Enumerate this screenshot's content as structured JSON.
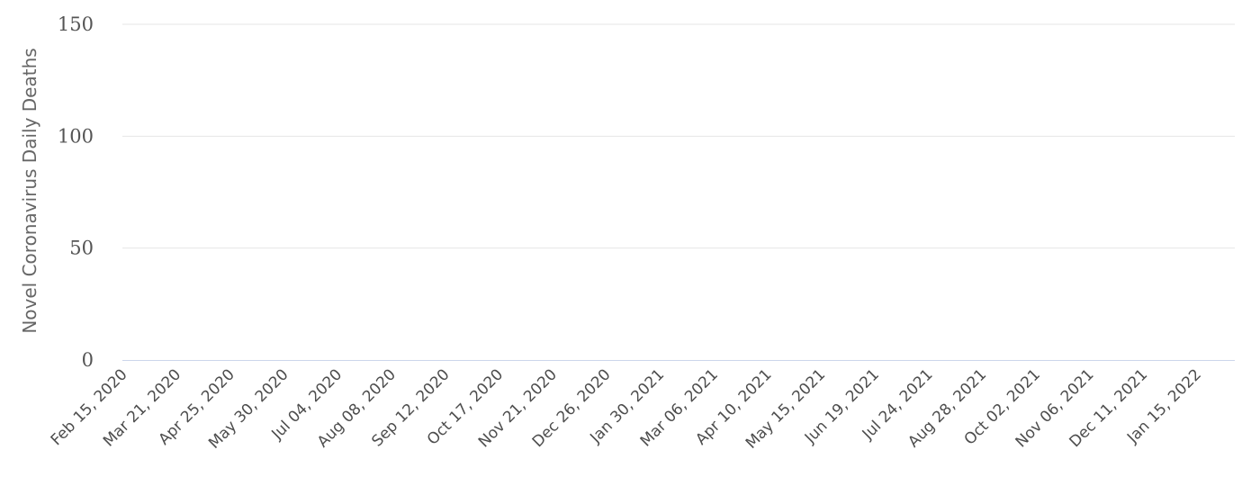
{
  "chart_data": {
    "type": "bar",
    "ylabel": "Novel Coronavirus Daily Deaths",
    "ylim": [
      0,
      150
    ],
    "y_ticks": [
      "0",
      "50",
      "100",
      "150"
    ],
    "grid": true,
    "bar_color": "#999999",
    "grid_color": "#e6e6e6",
    "axis_color": "#ccd6eb",
    "x_start": "2020-02-15",
    "x_end": "2022-02-08",
    "x_ticks": [
      "Feb 15, 2020",
      "Mar 21, 2020",
      "Apr 25, 2020",
      "May 30, 2020",
      "Jul 04, 2020",
      "Aug 08, 2020",
      "Sep 12, 2020",
      "Oct 17, 2020",
      "Nov 21, 2020",
      "Dec 26, 2020",
      "Jan 30, 2021",
      "Mar 06, 2021",
      "Apr 10, 2021",
      "May 15, 2021",
      "Jun 19, 2021",
      "Jul 24, 2021",
      "Aug 28, 2021",
      "Oct 02, 2021",
      "Nov 06, 2021",
      "Dec 11, 2021",
      "Jan 15, 2022"
    ],
    "series": [
      {
        "values": [
          0,
          0,
          0,
          0,
          0,
          0,
          0,
          0,
          0,
          0,
          0,
          0,
          0,
          0,
          0,
          0,
          0,
          0,
          0,
          0,
          0,
          0,
          0,
          0,
          0,
          0,
          0,
          0,
          0,
          0,
          0,
          0,
          0,
          0,
          0,
          0,
          0,
          0,
          0,
          0,
          0,
          0,
          0,
          0,
          0,
          0,
          0,
          0,
          0,
          0,
          0,
          0,
          0,
          0,
          0,
          0,
          0,
          0,
          0,
          0,
          0,
          0,
          0,
          0,
          0,
          0,
          0,
          0,
          0,
          0,
          0,
          0,
          0,
          0,
          0,
          0,
          0,
          0,
          0,
          0,
          0,
          0,
          0,
          0,
          0,
          0,
          0,
          0,
          0,
          0,
          0,
          0,
          0,
          0,
          0,
          0,
          0,
          0,
          0,
          0,
          0,
          0,
          0,
          0,
          0,
          0,
          0,
          0,
          0,
          0,
          0,
          0,
          0,
          0,
          0,
          0,
          0,
          0,
          0,
          0,
          0,
          0,
          0,
          0,
          0,
          0,
          0,
          0,
          0,
          0,
          0,
          0,
          0,
          0,
          0,
          0,
          0,
          0,
          0,
          0,
          0,
          0,
          0,
          0,
          0,
          0,
          0,
          0,
          0,
          0,
          0,
          0,
          0,
          0,
          0,
          0,
          0,
          0,
          0,
          0,
          0,
          0,
          0,
          0,
          0,
          0,
          0,
          0,
          0,
          0,
          0,
          0,
          0,
          0,
          0,
          0,
          0,
          0,
          0,
          0,
          0,
          0,
          0,
          0,
          0,
          0,
          0,
          0,
          0,
          0,
          0,
          0,
          0,
          0,
          0,
          0,
          0,
          0,
          0,
          0,
          0,
          0,
          0,
          0,
          0,
          0,
          0,
          0,
          0,
          0,
          0,
          0,
          0,
          0,
          0,
          0,
          0,
          0,
          0,
          0,
          0,
          0,
          0,
          0,
          0,
          0,
          0,
          0,
          0,
          0,
          0,
          0,
          0,
          0,
          0,
          0,
          0,
          0,
          0,
          0,
          0,
          0,
          0,
          0,
          0,
          0,
          0,
          0,
          0,
          0,
          0,
          0,
          0,
          0,
          0,
          0,
          0,
          0,
          0,
          0,
          0,
          0,
          0,
          0,
          0,
          0,
          0,
          0,
          0,
          0,
          0,
          0,
          0,
          0,
          0,
          0,
          0,
          0,
          0,
          0,
          0,
          0,
          0,
          0,
          0,
          0,
          0,
          0,
          0,
          0,
          0,
          0,
          0,
          0,
          0,
          0,
          0,
          0,
          0,
          0,
          0,
          0,
          0,
          0,
          0,
          0,
          0,
          0,
          0,
          0,
          0,
          0,
          0,
          0,
          0,
          0,
          0,
          0,
          0,
          0,
          0,
          0,
          0,
          0,
          0,
          0,
          0,
          0,
          0,
          0,
          0,
          0,
          0,
          0,
          0,
          0,
          0,
          0,
          0,
          0,
          0,
          0,
          0,
          0,
          0,
          0,
          0,
          0,
          0,
          0,
          0,
          0,
          0,
          0,
          0,
          0,
          0,
          0,
          0,
          0,
          0,
          0,
          0,
          0,
          0,
          0,
          0,
          0,
          0,
          0,
          0,
          0,
          0,
          0,
          0,
          0,
          0,
          0,
          0,
          0,
          0,
          0,
          0,
          0,
          0,
          0,
          0,
          0,
          0,
          0,
          0,
          0,
          0,
          0,
          0,
          0,
          0,
          0,
          0,
          0,
          0,
          0,
          0,
          0,
          0,
          0,
          0,
          0,
          0,
          0,
          0,
          0,
          0,
          0,
          0,
          0,
          0,
          0,
          0,
          0,
          0,
          0,
          0,
          0,
          0,
          0,
          0,
          0,
          0,
          0,
          0,
          0,
          0,
          0,
          0,
          0,
          0,
          0,
          0,
          0,
          0,
          0,
          0,
          0,
          0,
          0,
          0,
          0,
          0,
          0,
          0,
          0,
          0,
          0,
          0,
          0,
          0,
          0,
          0,
          0,
          0,
          0,
          0,
          0,
          0,
          0,
          0,
          0,
          0,
          0,
          0,
          0,
          0,
          0,
          0,
          0,
          0,
          0,
          0,
          0,
          0,
          0,
          0,
          0,
          0,
          0,
          0,
          0,
          0,
          0,
          0,
          0,
          0,
          0,
          0,
          0,
          0,
          0,
          0,
          0,
          0,
          0,
          0,
          0,
          0,
          0,
          0,
          0,
          0,
          0,
          0,
          0,
          0,
          0,
          0,
          0,
          0,
          0,
          0,
          0,
          0,
          0,
          0,
          0,
          0,
          0,
          0,
          0,
          0,
          0,
          0,
          0,
          0,
          0,
          0,
          0,
          0,
          0,
          0,
          0,
          0,
          0,
          0,
          0,
          0,
          0,
          0,
          0,
          0,
          0,
          0,
          0,
          0,
          0,
          0,
          0,
          0,
          0,
          0,
          0,
          0,
          0,
          0,
          0,
          0,
          0,
          0,
          0,
          0,
          0,
          0,
          0,
          0,
          0,
          0,
          0,
          0,
          0,
          0,
          0,
          0,
          0,
          0,
          0,
          0,
          0,
          0,
          0,
          0,
          0,
          0,
          0,
          0,
          0,
          0,
          0,
          0,
          0,
          0,
          0,
          0,
          0,
          0,
          0,
          0,
          0,
          0,
          0,
          0,
          0,
          0,
          0,
          0,
          0,
          0,
          0,
          0,
          0,
          0,
          0,
          0,
          0,
          0,
          0,
          0,
          0,
          0,
          0,
          0,
          0,
          0,
          0,
          0,
          0,
          0,
          0,
          0,
          0,
          0,
          0,
          0,
          0,
          0,
          0,
          0,
          0,
          0,
          0,
          0,
          0,
          0,
          0,
          0,
          0,
          0,
          0,
          0,
          0,
          0,
          0,
          0,
          0,
          0,
          0,
          0,
          0,
          0,
          0,
          0,
          0,
          0,
          0,
          0,
          0,
          0,
          0,
          0,
          0,
          0,
          0,
          0,
          0,
          0,
          0,
          0,
          0,
          0,
          0,
          0,
          0,
          0,
          0,
          0,
          0,
          0,
          0,
          0,
          0,
          0,
          0,
          0,
          0,
          0,
          0,
          0,
          0,
          0,
          0,
          0,
          0,
          0,
          0,
          0,
          0,
          0,
          0,
          0,
          0,
          0,
          0,
          0,
          0,
          0,
          0,
          0,
          0,
          0,
          0,
          0,
          0,
          0,
          0,
          0,
          0,
          0,
          0,
          0,
          0,
          0,
          0,
          0,
          0,
          0,
          0,
          0,
          0,
          0,
          0,
          0,
          0,
          0,
          0,
          0,
          0,
          0,
          0,
          0,
          0,
          0,
          0,
          0,
          0,
          0,
          0,
          0,
          0,
          0,
          0,
          0,
          0,
          0,
          0,
          0,
          0,
          0,
          0,
          0,
          0,
          0,
          0,
          0,
          0,
          0,
          0,
          0,
          0,
          0,
          0,
          0,
          0,
          0,
          0,
          0,
          0,
          0,
          0,
          0,
          0,
          0,
          0,
          0,
          0,
          0,
          0,
          0,
          0,
          0,
          0,
          0,
          0,
          0,
          0,
          0,
          0,
          0,
          0,
          0,
          0,
          0,
          0,
          0,
          0
        ]
      }
    ]
  }
}
